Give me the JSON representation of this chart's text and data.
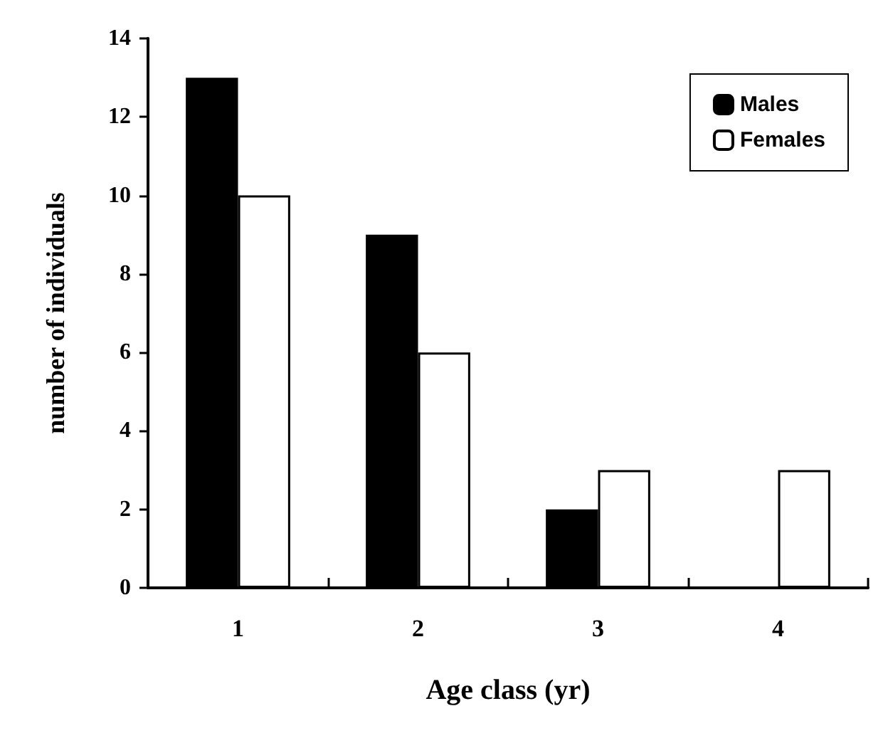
{
  "chart_data": {
    "type": "bar",
    "xlabel": "Age class (yr)",
    "ylabel": "number of individuals",
    "categories": [
      "1",
      "2",
      "3",
      "4"
    ],
    "series": [
      {
        "name": "Males",
        "color": "#000000",
        "values": [
          13,
          9,
          2,
          0
        ]
      },
      {
        "name": "Females",
        "color": "#ffffff",
        "values": [
          10,
          6,
          3,
          3
        ]
      }
    ],
    "ylim": [
      0,
      14
    ],
    "yticks": [
      0,
      2,
      4,
      6,
      8,
      10,
      12,
      14
    ],
    "grid": false,
    "legend": "top right"
  }
}
